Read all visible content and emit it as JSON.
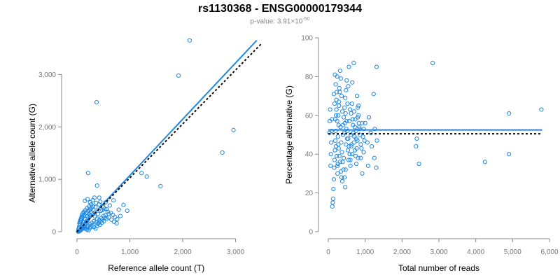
{
  "title": "rs1130368 - ENSG00000179344",
  "subtitle": {
    "prefix": "p-value: 3.91×10",
    "exponent": "-50"
  },
  "colors": {
    "points": "#1E88E5",
    "fit": "#1E88E5",
    "reference": "#000000",
    "axis": "#888888"
  },
  "chart_data": [
    {
      "type": "scatter",
      "xlabel": "Reference allele count (T)",
      "ylabel": "Alternative allele count (G)",
      "xlim": [
        0,
        3350
      ],
      "ylim": [
        0,
        3700
      ],
      "xticks": [
        0,
        1000,
        2000,
        3000
      ],
      "xtick_labels": [
        "0",
        "1,000",
        "2,000",
        "3,000"
      ],
      "yticks": [
        0,
        1000,
        2000,
        3000
      ],
      "ytick_labels": [
        "0",
        "1,000",
        "2,000",
        "3,000"
      ],
      "grid": false,
      "fit_line": {
        "x": [
          0,
          3400
        ],
        "y": [
          0,
          3650
        ],
        "style": "solid"
      },
      "reference_line": {
        "x": [
          0,
          3500
        ],
        "y": [
          0,
          3600
        ],
        "style": "dotted"
      },
      "points": [
        [
          2130,
          3650
        ],
        [
          1920,
          2980
        ],
        [
          370,
          2470
        ],
        [
          2960,
          1940
        ],
        [
          2750,
          1510
        ],
        [
          1580,
          870
        ],
        [
          1320,
          1050
        ],
        [
          1220,
          1120
        ],
        [
          210,
          1120
        ],
        [
          380,
          880
        ],
        [
          880,
          510
        ],
        [
          790,
          420
        ],
        [
          690,
          600
        ],
        [
          540,
          560
        ],
        [
          620,
          500
        ],
        [
          580,
          380
        ],
        [
          950,
          400
        ],
        [
          500,
          470
        ],
        [
          420,
          520
        ],
        [
          350,
          470
        ],
        [
          310,
          420
        ],
        [
          280,
          360
        ],
        [
          250,
          300
        ],
        [
          220,
          270
        ],
        [
          200,
          230
        ],
        [
          190,
          200
        ],
        [
          170,
          180
        ],
        [
          160,
          150
        ],
        [
          150,
          120
        ],
        [
          140,
          100
        ],
        [
          130,
          90
        ],
        [
          120,
          80
        ],
        [
          110,
          70
        ],
        [
          100,
          60
        ],
        [
          90,
          50
        ],
        [
          80,
          40
        ],
        [
          70,
          30
        ],
        [
          60,
          20
        ],
        [
          50,
          15
        ],
        [
          40,
          10
        ],
        [
          30,
          5
        ],
        [
          20,
          3
        ],
        [
          100,
          140
        ],
        [
          120,
          180
        ],
        [
          160,
          240
        ],
        [
          200,
          300
        ],
        [
          230,
          330
        ],
        [
          260,
          380
        ],
        [
          300,
          330
        ],
        [
          340,
          290
        ],
        [
          380,
          250
        ],
        [
          420,
          220
        ],
        [
          460,
          260
        ],
        [
          500,
          300
        ],
        [
          540,
          320
        ],
        [
          600,
          270
        ],
        [
          650,
          230
        ],
        [
          700,
          190
        ],
        [
          750,
          160
        ],
        [
          400,
          340
        ],
        [
          450,
          400
        ],
        [
          480,
          410
        ],
        [
          520,
          440
        ],
        [
          560,
          430
        ],
        [
          300,
          480
        ],
        [
          270,
          450
        ],
        [
          240,
          420
        ],
        [
          210,
          390
        ],
        [
          180,
          360
        ],
        [
          140,
          330
        ],
        [
          120,
          300
        ],
        [
          100,
          270
        ],
        [
          90,
          240
        ],
        [
          80,
          210
        ],
        [
          70,
          180
        ],
        [
          60,
          150
        ],
        [
          50,
          120
        ],
        [
          40,
          90
        ],
        [
          35,
          70
        ],
        [
          30,
          50
        ],
        [
          150,
          60
        ],
        [
          180,
          90
        ],
        [
          210,
          110
        ],
        [
          250,
          140
        ],
        [
          280,
          170
        ],
        [
          320,
          200
        ],
        [
          360,
          180
        ],
        [
          390,
          150
        ],
        [
          430,
          130
        ],
        [
          470,
          170
        ],
        [
          510,
          200
        ],
        [
          300,
          600
        ],
        [
          250,
          560
        ],
        [
          200,
          620
        ],
        [
          150,
          590
        ],
        [
          330,
          650
        ],
        [
          420,
          650
        ],
        [
          440,
          570
        ],
        [
          360,
          550
        ],
        [
          270,
          520
        ],
        [
          230,
          480
        ],
        [
          190,
          450
        ],
        [
          160,
          410
        ],
        [
          130,
          380
        ],
        [
          110,
          350
        ],
        [
          95,
          320
        ],
        [
          85,
          280
        ],
        [
          75,
          250
        ],
        [
          65,
          220
        ],
        [
          55,
          190
        ],
        [
          45,
          160
        ],
        [
          170,
          60
        ],
        [
          190,
          40
        ],
        [
          220,
          30
        ],
        [
          240,
          70
        ],
        [
          260,
          100
        ],
        [
          290,
          120
        ],
        [
          320,
          90
        ],
        [
          350,
          60
        ],
        [
          380,
          110
        ],
        [
          410,
          170
        ],
        [
          440,
          190
        ],
        [
          480,
          230
        ],
        [
          520,
          260
        ],
        [
          560,
          250
        ],
        [
          600,
          340
        ],
        [
          640,
          360
        ],
        [
          680,
          320
        ],
        [
          720,
          280
        ],
        [
          760,
          240
        ],
        [
          820,
          300
        ]
      ]
    },
    {
      "type": "scatter",
      "xlabel": "Total number of reads",
      "ylabel": "Percentage alternative (G)",
      "xlim": [
        0,
        6000
      ],
      "ylim": [
        0,
        100
      ],
      "xticks": [
        0,
        1000,
        2000,
        3000,
        4000,
        5000,
        6000
      ],
      "xtick_labels": [
        "0",
        "1,000",
        "2,000",
        "3,000",
        "4,000",
        "5,000",
        "6,000"
      ],
      "yticks": [
        0,
        20,
        40,
        60,
        80,
        100
      ],
      "ytick_labels": [
        "0",
        "20",
        "40",
        "60",
        "80",
        "100"
      ],
      "grid": false,
      "fit_line": {
        "x": [
          0,
          5800
        ],
        "y": [
          52.5,
          52.5
        ],
        "style": "solid"
      },
      "reference_line": {
        "x": [
          0,
          5800
        ],
        "y": [
          50.5,
          50.5
        ],
        "style": "dotted"
      },
      "points": [
        [
          5780,
          63
        ],
        [
          4900,
          61
        ],
        [
          4900,
          40
        ],
        [
          4250,
          36
        ],
        [
          2830,
          87
        ],
        [
          2400,
          48
        ],
        [
          2380,
          44
        ],
        [
          2460,
          35
        ],
        [
          1310,
          85
        ],
        [
          1230,
          71
        ],
        [
          1260,
          53
        ],
        [
          1320,
          47
        ],
        [
          1250,
          38
        ],
        [
          1300,
          33
        ],
        [
          1080,
          34
        ],
        [
          1060,
          46
        ],
        [
          1000,
          56
        ],
        [
          960,
          41
        ],
        [
          920,
          30
        ],
        [
          880,
          38
        ],
        [
          850,
          53
        ],
        [
          820,
          65
        ],
        [
          800,
          59
        ],
        [
          760,
          48
        ],
        [
          720,
          54
        ],
        [
          700,
          62
        ],
        [
          690,
          87
        ],
        [
          650,
          77
        ],
        [
          620,
          44
        ],
        [
          600,
          34
        ],
        [
          560,
          85
        ],
        [
          540,
          75
        ],
        [
          520,
          66
        ],
        [
          500,
          57
        ],
        [
          480,
          45
        ],
        [
          470,
          32
        ],
        [
          460,
          23
        ],
        [
          440,
          28
        ],
        [
          420,
          38
        ],
        [
          400,
          50
        ],
        [
          380,
          62
        ],
        [
          360,
          70
        ],
        [
          340,
          79
        ],
        [
          320,
          83
        ],
        [
          300,
          74
        ],
        [
          290,
          65
        ],
        [
          280,
          55
        ],
        [
          270,
          45
        ],
        [
          260,
          35
        ],
        [
          250,
          30
        ],
        [
          240,
          80
        ],
        [
          230,
          72
        ],
        [
          220,
          68
        ],
        [
          210,
          60
        ],
        [
          200,
          52
        ],
        [
          190,
          47
        ],
        [
          180,
          42
        ],
        [
          170,
          37
        ],
        [
          160,
          33
        ],
        [
          150,
          27
        ],
        [
          140,
          22
        ],
        [
          130,
          17
        ],
        [
          120,
          15
        ],
        [
          110,
          13
        ],
        [
          180,
          81
        ],
        [
          200,
          76
        ],
        [
          220,
          63
        ],
        [
          240,
          57
        ],
        [
          260,
          49
        ],
        [
          280,
          43
        ],
        [
          300,
          39
        ],
        [
          320,
          36
        ],
        [
          340,
          31
        ],
        [
          360,
          28
        ],
        [
          380,
          26
        ],
        [
          400,
          55
        ],
        [
          420,
          59
        ],
        [
          440,
          64
        ],
        [
          460,
          69
        ],
        [
          480,
          73
        ],
        [
          500,
          78
        ],
        [
          520,
          52
        ],
        [
          540,
          48
        ],
        [
          560,
          44
        ],
        [
          580,
          40
        ],
        [
          600,
          37
        ],
        [
          620,
          61
        ],
        [
          640,
          66
        ],
        [
          660,
          58
        ],
        [
          680,
          51
        ],
        [
          700,
          46
        ],
        [
          720,
          42
        ],
        [
          740,
          39
        ],
        [
          760,
          35
        ],
        [
          780,
          70
        ],
        [
          800,
          64
        ],
        [
          820,
          60
        ],
        [
          840,
          54
        ],
        [
          860,
          50
        ],
        [
          880,
          45
        ],
        [
          900,
          43
        ],
        [
          920,
          56
        ],
        [
          940,
          49
        ],
        [
          960,
          53
        ],
        [
          980,
          47
        ],
        [
          100,
          58
        ],
        [
          90,
          52
        ],
        [
          80,
          46
        ],
        [
          70,
          40
        ],
        [
          60,
          34
        ],
        [
          50,
          63
        ],
        [
          40,
          57
        ],
        [
          30,
          51
        ],
        [
          150,
          71
        ],
        [
          170,
          66
        ],
        [
          190,
          58
        ],
        [
          210,
          44
        ],
        [
          230,
          39
        ],
        [
          250,
          34
        ],
        [
          270,
          60
        ],
        [
          290,
          67
        ],
        [
          310,
          72
        ],
        [
          330,
          54
        ],
        [
          350,
          46
        ],
        [
          370,
          41
        ],
        [
          390,
          36
        ],
        [
          410,
          32
        ],
        [
          430,
          51
        ],
        [
          450,
          56
        ],
        [
          470,
          61
        ],
        [
          490,
          53
        ],
        [
          510,
          48
        ],
        [
          530,
          42
        ],
        [
          550,
          37
        ],
        [
          570,
          57
        ],
        [
          590,
          63
        ],
        [
          610,
          50
        ],
        [
          630,
          45
        ],
        [
          650,
          40
        ],
        [
          670,
          55
        ],
        [
          710,
          49
        ],
        [
          730,
          58
        ],
        [
          750,
          52
        ],
        [
          770,
          43
        ],
        [
          790,
          47
        ],
        [
          810,
          38
        ],
        [
          830,
          56
        ],
        [
          1100,
          59
        ],
        [
          1150,
          51
        ],
        [
          1180,
          44
        ]
      ]
    }
  ]
}
